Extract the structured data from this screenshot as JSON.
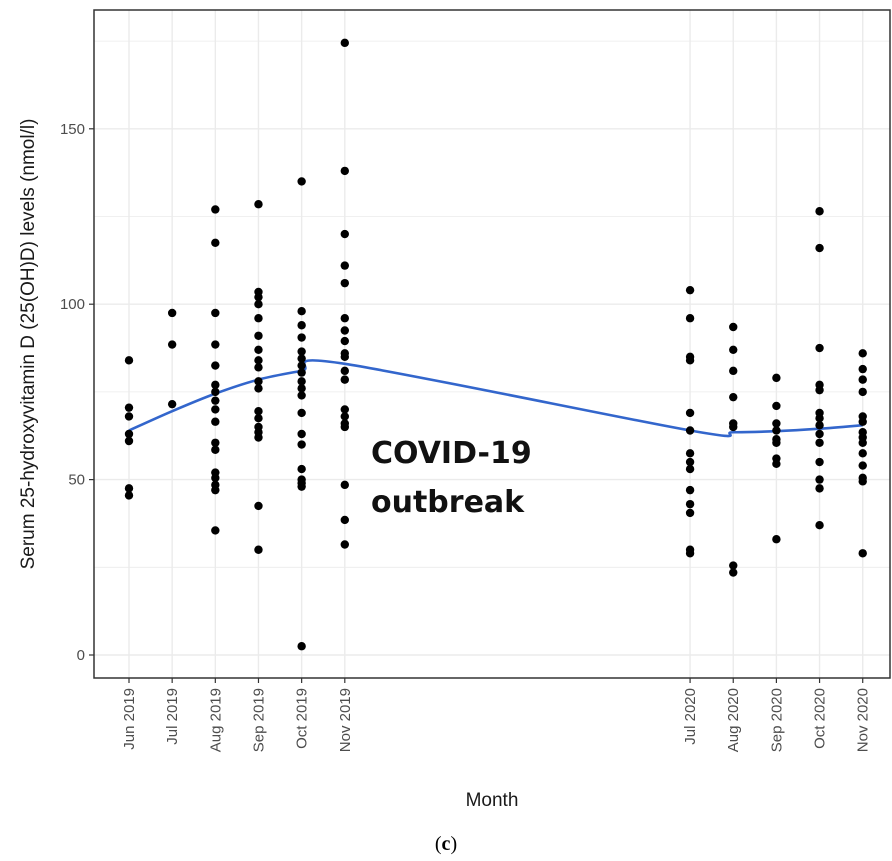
{
  "chart_data": {
    "type": "scatter",
    "xlabel": "Month",
    "ylabel": "Serum 25-hydroxyvitamin D (25(OH)D) levels (nmol/l)",
    "ylim": [
      -7,
      180
    ],
    "yticks": [
      0,
      50,
      100,
      150
    ],
    "grid": true,
    "categories": [
      "Jun 2019",
      "Jul 2019",
      "Aug 2019",
      "Sep 2019",
      "Oct 2019",
      "Nov 2019",
      "Jul 2020",
      "Aug 2020",
      "Sep 2020",
      "Oct 2020",
      "Nov 2020"
    ],
    "annotation": [
      "COVID-19",
      "outbreak"
    ],
    "caption": {
      "open": "(",
      "letter": "c",
      "close": ")"
    },
    "colors": {
      "points": "#000000",
      "trend": "#3366cc",
      "grid": "#ebebeb",
      "panel_border": "#333333"
    },
    "series": [
      {
        "kind": "points",
        "points": [
          [
            "Jun 2019",
            84
          ],
          [
            "Jun 2019",
            70.5
          ],
          [
            "Jun 2019",
            68
          ],
          [
            "Jun 2019",
            63
          ],
          [
            "Jun 2019",
            61
          ],
          [
            "Jun 2019",
            47.5
          ],
          [
            "Jun 2019",
            45.5
          ],
          [
            "Jul 2019",
            97.5
          ],
          [
            "Jul 2019",
            88.5
          ],
          [
            "Jul 2019",
            71.5
          ],
          [
            "Aug 2019",
            127
          ],
          [
            "Aug 2019",
            117.5
          ],
          [
            "Aug 2019",
            97.5
          ],
          [
            "Aug 2019",
            88.5
          ],
          [
            "Aug 2019",
            82.5
          ],
          [
            "Aug 2019",
            77
          ],
          [
            "Aug 2019",
            75
          ],
          [
            "Aug 2019",
            72.5
          ],
          [
            "Aug 2019",
            70
          ],
          [
            "Aug 2019",
            66.5
          ],
          [
            "Aug 2019",
            60.5
          ],
          [
            "Aug 2019",
            58.5
          ],
          [
            "Aug 2019",
            52
          ],
          [
            "Aug 2019",
            50.5
          ],
          [
            "Aug 2019",
            48.5
          ],
          [
            "Aug 2019",
            47
          ],
          [
            "Aug 2019",
            35.5
          ],
          [
            "Sep 2019",
            128.5
          ],
          [
            "Sep 2019",
            103.5
          ],
          [
            "Sep 2019",
            102
          ],
          [
            "Sep 2019",
            100
          ],
          [
            "Sep 2019",
            96
          ],
          [
            "Sep 2019",
            91
          ],
          [
            "Sep 2019",
            87
          ],
          [
            "Sep 2019",
            84
          ],
          [
            "Sep 2019",
            82
          ],
          [
            "Sep 2019",
            78
          ],
          [
            "Sep 2019",
            76
          ],
          [
            "Sep 2019",
            69.5
          ],
          [
            "Sep 2019",
            67.5
          ],
          [
            "Sep 2019",
            65
          ],
          [
            "Sep 2019",
            63.5
          ],
          [
            "Sep 2019",
            62
          ],
          [
            "Sep 2019",
            42.5
          ],
          [
            "Sep 2019",
            30
          ],
          [
            "Oct 2019",
            135
          ],
          [
            "Oct 2019",
            98
          ],
          [
            "Oct 2019",
            94
          ],
          [
            "Oct 2019",
            90.5
          ],
          [
            "Oct 2019",
            86.5
          ],
          [
            "Oct 2019",
            84.5
          ],
          [
            "Oct 2019",
            82.5
          ],
          [
            "Oct 2019",
            80.5
          ],
          [
            "Oct 2019",
            78
          ],
          [
            "Oct 2019",
            76
          ],
          [
            "Oct 2019",
            74
          ],
          [
            "Oct 2019",
            69
          ],
          [
            "Oct 2019",
            63
          ],
          [
            "Oct 2019",
            60
          ],
          [
            "Oct 2019",
            53
          ],
          [
            "Oct 2019",
            50
          ],
          [
            "Oct 2019",
            49
          ],
          [
            "Oct 2019",
            48
          ],
          [
            "Oct 2019",
            2.5
          ],
          [
            "Nov 2019",
            174.5
          ],
          [
            "Nov 2019",
            138
          ],
          [
            "Nov 2019",
            120
          ],
          [
            "Nov 2019",
            111
          ],
          [
            "Nov 2019",
            106
          ],
          [
            "Nov 2019",
            96
          ],
          [
            "Nov 2019",
            92.5
          ],
          [
            "Nov 2019",
            89.5
          ],
          [
            "Nov 2019",
            86
          ],
          [
            "Nov 2019",
            85
          ],
          [
            "Nov 2019",
            81
          ],
          [
            "Nov 2019",
            78.5
          ],
          [
            "Nov 2019",
            70
          ],
          [
            "Nov 2019",
            68
          ],
          [
            "Nov 2019",
            66
          ],
          [
            "Nov 2019",
            65
          ],
          [
            "Nov 2019",
            48.5
          ],
          [
            "Nov 2019",
            38.5
          ],
          [
            "Nov 2019",
            31.5
          ],
          [
            "Jul 2020",
            104
          ],
          [
            "Jul 2020",
            96
          ],
          [
            "Jul 2020",
            85
          ],
          [
            "Jul 2020",
            84
          ],
          [
            "Jul 2020",
            69
          ],
          [
            "Jul 2020",
            64
          ],
          [
            "Jul 2020",
            57.5
          ],
          [
            "Jul 2020",
            55
          ],
          [
            "Jul 2020",
            53
          ],
          [
            "Jul 2020",
            47
          ],
          [
            "Jul 2020",
            43
          ],
          [
            "Jul 2020",
            40.5
          ],
          [
            "Jul 2020",
            30
          ],
          [
            "Jul 2020",
            29
          ],
          [
            "Aug 2020",
            93.5
          ],
          [
            "Aug 2020",
            87
          ],
          [
            "Aug 2020",
            81
          ],
          [
            "Aug 2020",
            73.5
          ],
          [
            "Aug 2020",
            66
          ],
          [
            "Aug 2020",
            65
          ],
          [
            "Aug 2020",
            25.5
          ],
          [
            "Aug 2020",
            23.5
          ],
          [
            "Sep 2020",
            79
          ],
          [
            "Sep 2020",
            71
          ],
          [
            "Sep 2020",
            66
          ],
          [
            "Sep 2020",
            64
          ],
          [
            "Sep 2020",
            61.5
          ],
          [
            "Sep 2020",
            60.5
          ],
          [
            "Sep 2020",
            56
          ],
          [
            "Sep 2020",
            54.5
          ],
          [
            "Sep 2020",
            33
          ],
          [
            "Oct 2020",
            126.5
          ],
          [
            "Oct 2020",
            116
          ],
          [
            "Oct 2020",
            87.5
          ],
          [
            "Oct 2020",
            77
          ],
          [
            "Oct 2020",
            75.5
          ],
          [
            "Oct 2020",
            69
          ],
          [
            "Oct 2020",
            67.5
          ],
          [
            "Oct 2020",
            65.5
          ],
          [
            "Oct 2020",
            63
          ],
          [
            "Oct 2020",
            60.5
          ],
          [
            "Oct 2020",
            55
          ],
          [
            "Oct 2020",
            50
          ],
          [
            "Oct 2020",
            47.5
          ],
          [
            "Oct 2020",
            37
          ],
          [
            "Nov 2020",
            86
          ],
          [
            "Nov 2020",
            81.5
          ],
          [
            "Nov 2020",
            78.5
          ],
          [
            "Nov 2020",
            75
          ],
          [
            "Nov 2020",
            68
          ],
          [
            "Nov 2020",
            66.5
          ],
          [
            "Nov 2020",
            63.5
          ],
          [
            "Nov 2020",
            62
          ],
          [
            "Nov 2020",
            60.5
          ],
          [
            "Nov 2020",
            57.5
          ],
          [
            "Nov 2020",
            54
          ],
          [
            "Nov 2020",
            50.5
          ],
          [
            "Nov 2020",
            49.5
          ],
          [
            "Nov 2020",
            29
          ]
        ]
      },
      {
        "kind": "smooth-line",
        "points": [
          [
            "Jun 2019",
            64
          ],
          [
            "Jul 2019",
            69.5
          ],
          [
            "Aug 2019",
            74.5
          ],
          [
            "Sep 2019",
            78.5
          ],
          [
            "Oct 2019",
            81
          ],
          [
            "Nov 2019",
            83
          ],
          [
            "Jul 2020",
            64
          ],
          [
            "Aug 2020",
            63.5
          ],
          [
            "Sep 2020",
            63.8
          ],
          [
            "Oct 2020",
            64.5
          ],
          [
            "Nov 2020",
            65.5
          ]
        ]
      }
    ]
  }
}
